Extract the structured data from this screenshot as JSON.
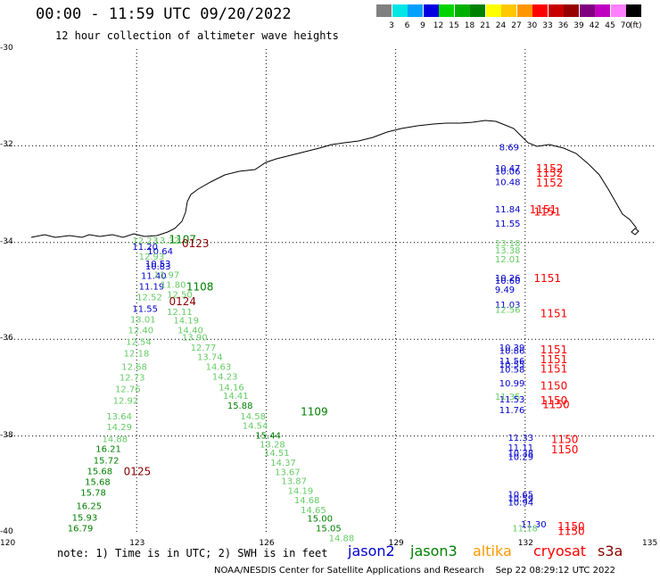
{
  "header": {
    "title": "00:00 - 11:59 UTC 09/20/2022",
    "subtitle": "12 hour collection of altimeter wave heights"
  },
  "legend": {
    "ticks": [
      "3",
      "6",
      "9",
      "12",
      "15",
      "18",
      "21",
      "24",
      "27",
      "30",
      "33",
      "36",
      "39",
      "42",
      "45",
      "70"
    ],
    "unit": "(ft)",
    "colors": [
      "#808080",
      "#00e5e5",
      "#00a0ff",
      "#0000e0",
      "#00d400",
      "#00b000",
      "#008000",
      "#ffff00",
      "#ffc800",
      "#ff9600",
      "#ff0000",
      "#c80000",
      "#960000",
      "#800080",
      "#c000c0",
      "#ff80ff",
      "#000000"
    ]
  },
  "map": {
    "lat_labels": [
      "-30",
      "-32",
      "-34",
      "-36",
      "-38",
      "-40"
    ],
    "lon_labels": [
      "120",
      "123",
      "126",
      "129",
      "132",
      "135"
    ],
    "coast_color": "#000000"
  },
  "footer": {
    "note": "note: 1) Time is in UTC; 2) SWH is in feet",
    "satellites": [
      {
        "name": "jason2",
        "color": "#0000cc"
      },
      {
        "name": "jason3",
        "color": "#008000"
      },
      {
        "name": "altika",
        "color": "#ff9900"
      },
      {
        "name": "cryosat",
        "color": "#ff0000"
      },
      {
        "name": "s3a",
        "color": "#8b0000"
      }
    ],
    "credit": "NOAA/NESDIS Center for Satellite Applications and Research    Sep 22 08:29:12 UTC 2022"
  },
  "observations": [
    {
      "v": "8.69",
      "c": "#0000cc",
      "lon": 131.4,
      "lat": -32.02
    },
    {
      "v": "10.47",
      "c": "#0000cc",
      "lon": 131.3,
      "lat": -32.45
    },
    {
      "v": "10.06",
      "c": "#0000cc",
      "lon": 131.3,
      "lat": -32.52
    },
    {
      "v": "10.48",
      "c": "#0000cc",
      "lon": 131.3,
      "lat": -32.74
    },
    {
      "v": "11.84",
      "c": "#0000cc",
      "lon": 131.3,
      "lat": -33.3
    },
    {
      "v": "11.55",
      "c": "#0000cc",
      "lon": 131.3,
      "lat": -33.6
    },
    {
      "v": "13.18",
      "c": "#66cc66",
      "lon": 131.3,
      "lat": -34.0
    },
    {
      "v": "13.38",
      "c": "#66cc66",
      "lon": 131.3,
      "lat": -34.15
    },
    {
      "v": "12.01",
      "c": "#66cc66",
      "lon": 131.3,
      "lat": -34.34
    },
    {
      "v": "10.26",
      "c": "#0000cc",
      "lon": 131.3,
      "lat": -34.72
    },
    {
      "v": "10.60",
      "c": "#0000cc",
      "lon": 131.3,
      "lat": -34.78
    },
    {
      "v": "9.49",
      "c": "#0000cc",
      "lon": 131.3,
      "lat": -34.96
    },
    {
      "v": "11.03",
      "c": "#0000cc",
      "lon": 131.3,
      "lat": -35.28
    },
    {
      "v": "12.56",
      "c": "#66cc66",
      "lon": 131.3,
      "lat": -35.38
    },
    {
      "v": "10.39",
      "c": "#0000cc",
      "lon": 131.4,
      "lat": -36.16
    },
    {
      "v": "10.86",
      "c": "#0000cc",
      "lon": 131.4,
      "lat": -36.23
    },
    {
      "v": "11.56",
      "c": "#0000cc",
      "lon": 131.4,
      "lat": -36.44
    },
    {
      "v": "10.55",
      "c": "#0000cc",
      "lon": 131.4,
      "lat": -36.51
    },
    {
      "v": "10.58",
      "c": "#0000cc",
      "lon": 131.4,
      "lat": -36.61
    },
    {
      "v": "10.99",
      "c": "#0000cc",
      "lon": 131.4,
      "lat": -36.9
    },
    {
      "v": "11.35",
      "c": "#66cc66",
      "lon": 131.3,
      "lat": -37.18
    },
    {
      "v": "11.53",
      "c": "#0000cc",
      "lon": 131.4,
      "lat": -37.23
    },
    {
      "v": "11.76",
      "c": "#0000cc",
      "lon": 131.4,
      "lat": -37.45
    },
    {
      "v": "11.33",
      "c": "#0000cc",
      "lon": 131.6,
      "lat": -38.03
    },
    {
      "v": "11.11",
      "c": "#0000cc",
      "lon": 131.6,
      "lat": -38.23
    },
    {
      "v": "10.38",
      "c": "#0000cc",
      "lon": 131.6,
      "lat": -38.35
    },
    {
      "v": "10.29",
      "c": "#0000cc",
      "lon": 131.6,
      "lat": -38.42
    },
    {
      "v": "10.65",
      "c": "#0000cc",
      "lon": 131.6,
      "lat": -39.2
    },
    {
      "v": "10.59",
      "c": "#0000cc",
      "lon": 131.6,
      "lat": -39.28
    },
    {
      "v": "10.94",
      "c": "#0000cc",
      "lon": 131.6,
      "lat": -39.36
    },
    {
      "v": "11.30",
      "c": "#0000cc",
      "lon": 131.9,
      "lat": -39.82
    },
    {
      "v": "11.18",
      "c": "#66cc66",
      "lon": 131.7,
      "lat": -39.9
    },
    {
      "v": "12.23",
      "c": "#66cc66",
      "lon": 122.9,
      "lat": -33.95
    },
    {
      "v": "13.32",
      "c": "#66cc66",
      "lon": 123.4,
      "lat": -33.95
    },
    {
      "v": "11.20",
      "c": "#0000cc",
      "lon": 122.9,
      "lat": -34.08
    },
    {
      "v": "10.64",
      "c": "#0000cc",
      "lon": 123.25,
      "lat": -34.17
    },
    {
      "v": "12.93",
      "c": "#66cc66",
      "lon": 123.05,
      "lat": -34.28
    },
    {
      "v": "10.53",
      "c": "#0000cc",
      "lon": 123.2,
      "lat": -34.43
    },
    {
      "v": "10.83",
      "c": "#0000cc",
      "lon": 123.2,
      "lat": -34.48
    },
    {
      "v": "11.40",
      "c": "#0000cc",
      "lon": 123.1,
      "lat": -34.68
    },
    {
      "v": "11.97",
      "c": "#66cc66",
      "lon": 123.4,
      "lat": -34.66
    },
    {
      "v": "11.19",
      "c": "#0000cc",
      "lon": 123.05,
      "lat": -34.9
    },
    {
      "v": "11.80",
      "c": "#66cc66",
      "lon": 123.55,
      "lat": -34.86
    },
    {
      "v": "12.52",
      "c": "#66cc66",
      "lon": 123.0,
      "lat": -35.12
    },
    {
      "v": "12.50",
      "c": "#66cc66",
      "lon": 123.7,
      "lat": -35.06
    },
    {
      "v": "11.55",
      "c": "#0000cc",
      "lon": 122.9,
      "lat": -35.36
    },
    {
      "v": "12.11",
      "c": "#66cc66",
      "lon": 123.7,
      "lat": -35.42
    },
    {
      "v": "13.01",
      "c": "#66cc66",
      "lon": 122.85,
      "lat": -35.58
    },
    {
      "v": "14.19",
      "c": "#66cc66",
      "lon": 123.85,
      "lat": -35.6
    },
    {
      "v": "12.40",
      "c": "#66cc66",
      "lon": 122.8,
      "lat": -35.8
    },
    {
      "v": "14.40",
      "c": "#66cc66",
      "lon": 123.95,
      "lat": -35.8
    },
    {
      "v": "13.90",
      "c": "#66cc66",
      "lon": 124.05,
      "lat": -35.95
    },
    {
      "v": "12.54",
      "c": "#66cc66",
      "lon": 122.75,
      "lat": -36.04
    },
    {
      "v": "12.77",
      "c": "#66cc66",
      "lon": 124.25,
      "lat": -36.16
    },
    {
      "v": "12.18",
      "c": "#66cc66",
      "lon": 122.7,
      "lat": -36.28
    },
    {
      "v": "13.74",
      "c": "#66cc66",
      "lon": 124.4,
      "lat": -36.36
    },
    {
      "v": "12.68",
      "c": "#66cc66",
      "lon": 122.65,
      "lat": -36.56
    },
    {
      "v": "14.63",
      "c": "#66cc66",
      "lon": 124.6,
      "lat": -36.56
    },
    {
      "v": "12.73",
      "c": "#66cc66",
      "lon": 122.6,
      "lat": -36.78
    },
    {
      "v": "14.23",
      "c": "#66cc66",
      "lon": 124.75,
      "lat": -36.76
    },
    {
      "v": "14.16",
      "c": "#66cc66",
      "lon": 124.9,
      "lat": -36.98
    },
    {
      "v": "12.76",
      "c": "#66cc66",
      "lon": 122.5,
      "lat": -37.02
    },
    {
      "v": "14.41",
      "c": "#66cc66",
      "lon": 125.0,
      "lat": -37.16
    },
    {
      "v": "12.92",
      "c": "#66cc66",
      "lon": 122.45,
      "lat": -37.26
    },
    {
      "v": "15.88",
      "c": "#008000",
      "lon": 125.1,
      "lat": -37.36
    },
    {
      "v": "13.64",
      "c": "#66cc66",
      "lon": 122.3,
      "lat": -37.58
    },
    {
      "v": "14.58",
      "c": "#66cc66",
      "lon": 125.4,
      "lat": -37.58
    },
    {
      "v": "14.29",
      "c": "#66cc66",
      "lon": 122.3,
      "lat": -37.8
    },
    {
      "v": "14.54",
      "c": "#66cc66",
      "lon": 125.45,
      "lat": -37.78
    },
    {
      "v": "15.44",
      "c": "#008000",
      "lon": 125.75,
      "lat": -37.98
    },
    {
      "v": "14.88",
      "c": "#66cc66",
      "lon": 122.2,
      "lat": -38.05
    },
    {
      "v": "13.28",
      "c": "#66cc66",
      "lon": 125.85,
      "lat": -38.16
    },
    {
      "v": "16.21",
      "c": "#008000",
      "lon": 122.05,
      "lat": -38.26
    },
    {
      "v": "14.51",
      "c": "#66cc66",
      "lon": 125.95,
      "lat": -38.34
    },
    {
      "v": "15.72",
      "c": "#008000",
      "lon": 122.0,
      "lat": -38.5
    },
    {
      "v": "14.37",
      "c": "#66cc66",
      "lon": 126.1,
      "lat": -38.54
    },
    {
      "v": "15.68",
      "c": "#008000",
      "lon": 121.85,
      "lat": -38.72
    },
    {
      "v": "13.67",
      "c": "#66cc66",
      "lon": 126.2,
      "lat": -38.74
    },
    {
      "v": "15.68",
      "c": "#008000",
      "lon": 121.8,
      "lat": -38.94
    },
    {
      "v": "13.87",
      "c": "#66cc66",
      "lon": 126.35,
      "lat": -38.92
    },
    {
      "v": "14.19",
      "c": "#66cc66",
      "lon": 126.5,
      "lat": -39.12
    },
    {
      "v": "15.78",
      "c": "#008000",
      "lon": 121.7,
      "lat": -39.16
    },
    {
      "v": "14.68",
      "c": "#66cc66",
      "lon": 126.65,
      "lat": -39.32
    },
    {
      "v": "16.25",
      "c": "#008000",
      "lon": 121.6,
      "lat": -39.44
    },
    {
      "v": "14.65",
      "c": "#66cc66",
      "lon": 126.8,
      "lat": -39.52
    },
    {
      "v": "15.93",
      "c": "#008000",
      "lon": 121.5,
      "lat": -39.68
    },
    {
      "v": "15.00",
      "c": "#008000",
      "lon": 126.95,
      "lat": -39.7
    },
    {
      "v": "15.05",
      "c": "#008000",
      "lon": 127.15,
      "lat": -39.9
    },
    {
      "v": "16.79",
      "c": "#008000",
      "lon": 121.4,
      "lat": -39.9
    },
    {
      "v": "14.88",
      "c": "#66cc66",
      "lon": 127.45,
      "lat": -40.1
    }
  ],
  "track_labels": [
    {
      "t": "1152",
      "c": "#ff0000",
      "lon": 132.25,
      "lat": -32.45
    },
    {
      "t": "1152",
      "c": "#ff0000",
      "lon": 132.25,
      "lat": -32.55
    },
    {
      "t": "1152",
      "c": "#ff0000",
      "lon": 132.25,
      "lat": -32.75
    },
    {
      "t": "1151",
      "c": "#ff0000",
      "lon": 132.1,
      "lat": -33.3
    },
    {
      "t": "1151",
      "c": "#ff0000",
      "lon": 132.2,
      "lat": -33.35
    },
    {
      "t": "1151",
      "c": "#ff0000",
      "lon": 132.2,
      "lat": -34.72
    },
    {
      "t": "1151",
      "c": "#ff0000",
      "lon": 132.35,
      "lat": -35.45
    },
    {
      "t": "1151",
      "c": "#ff0000",
      "lon": 132.35,
      "lat": -36.2
    },
    {
      "t": "1151",
      "c": "#ff0000",
      "lon": 132.35,
      "lat": -36.4
    },
    {
      "t": "1151",
      "c": "#ff0000",
      "lon": 132.35,
      "lat": -36.6
    },
    {
      "t": "1150",
      "c": "#ff0000",
      "lon": 132.35,
      "lat": -36.95
    },
    {
      "t": "1150",
      "c": "#ff0000",
      "lon": 132.35,
      "lat": -37.25
    },
    {
      "t": "1150",
      "c": "#ff0000",
      "lon": 132.4,
      "lat": -37.33
    },
    {
      "t": "1150",
      "c": "#ff0000",
      "lon": 132.6,
      "lat": -38.05
    },
    {
      "t": "1150",
      "c": "#ff0000",
      "lon": 132.6,
      "lat": -38.27
    },
    {
      "t": "1150",
      "c": "#ff0000",
      "lon": 132.75,
      "lat": -39.85
    },
    {
      "t": "1150",
      "c": "#ff0000",
      "lon": 132.75,
      "lat": -39.95
    },
    {
      "t": "1107",
      "c": "#008000",
      "lon": 123.75,
      "lat": -33.92
    },
    {
      "t": "0123",
      "c": "#8b0000",
      "lon": 124.05,
      "lat": -34.0
    },
    {
      "t": "1108",
      "c": "#008000",
      "lon": 124.15,
      "lat": -34.9
    },
    {
      "t": "0124",
      "c": "#8b0000",
      "lon": 123.75,
      "lat": -35.2
    },
    {
      "t": "1109",
      "c": "#008000",
      "lon": 126.8,
      "lat": -37.48
    },
    {
      "t": "0125",
      "c": "#8b0000",
      "lon": 122.7,
      "lat": -38.72
    }
  ]
}
